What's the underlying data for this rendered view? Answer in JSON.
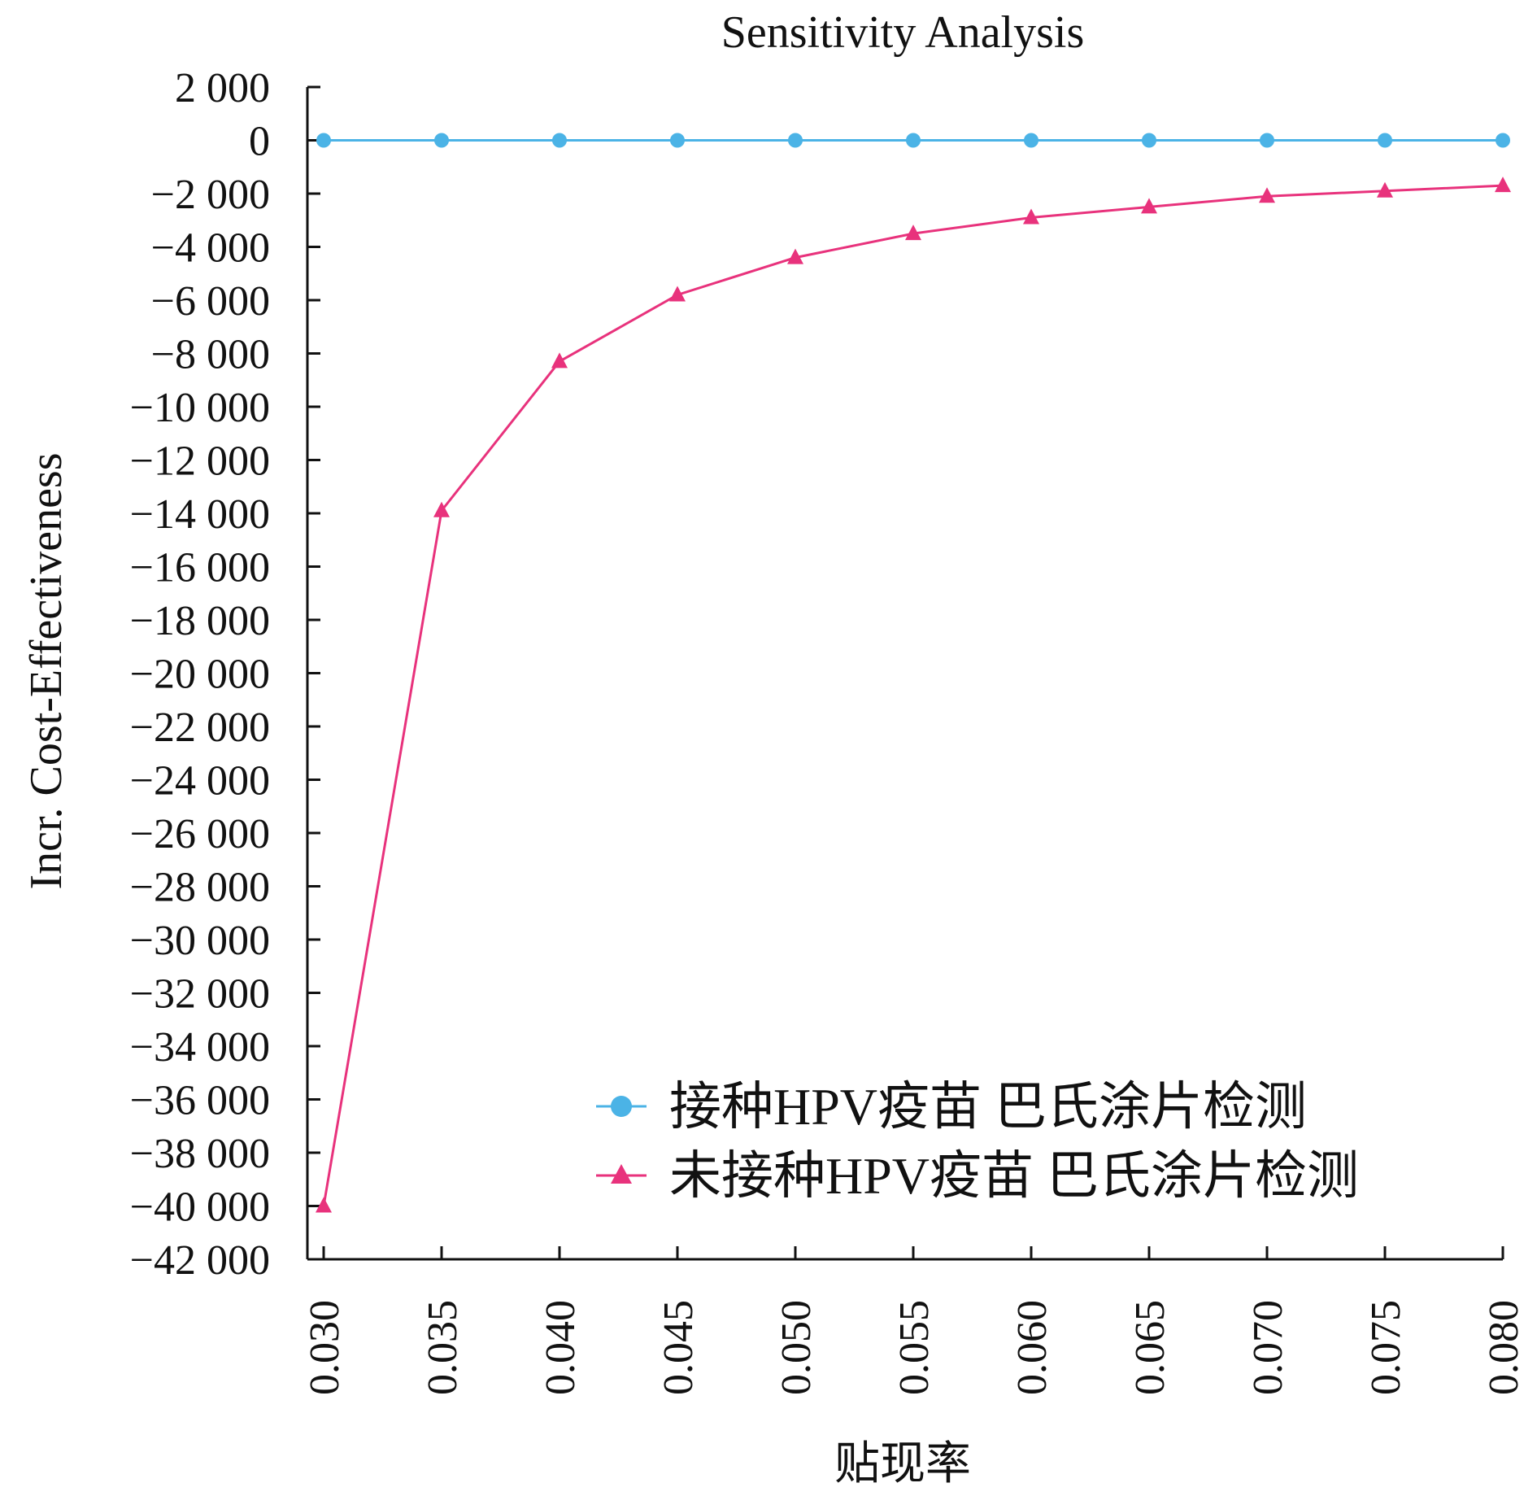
{
  "chart_data": {
    "type": "line",
    "title": "Sensitivity Analysis",
    "xlabel": "贴现率",
    "ylabel": "Incr. Cost-Effectiveness",
    "x": [
      0.03,
      0.035,
      0.04,
      0.045,
      0.05,
      0.055,
      0.06,
      0.065,
      0.07,
      0.075,
      0.08
    ],
    "x_tick_labels": [
      "0.030",
      "0.035",
      "0.040",
      "0.045",
      "0.050",
      "0.055",
      "0.060",
      "0.065",
      "0.070",
      "0.075",
      "0.080"
    ],
    "ylim": [
      -42000,
      2000
    ],
    "y_ticks": [
      2000,
      0,
      -2000,
      -4000,
      -6000,
      -8000,
      -10000,
      -12000,
      -14000,
      -16000,
      -18000,
      -20000,
      -22000,
      -24000,
      -26000,
      -28000,
      -30000,
      -32000,
      -34000,
      -36000,
      -38000,
      -40000,
      -42000
    ],
    "y_tick_labels": [
      "2 000",
      "0",
      "−2 000",
      "−4 000",
      "−6 000",
      "−8 000",
      "−10 000",
      "−12 000",
      "−14 000",
      "−16 000",
      "−18 000",
      "−20 000",
      "−22 000",
      "−24 000",
      "−26 000",
      "−28 000",
      "−30 000",
      "−32 000",
      "−34 000",
      "−36 000",
      "−38 000",
      "−40 000",
      "−42 000"
    ],
    "grid": false,
    "legend_position": "bottom-right",
    "series": [
      {
        "name": "接种HPV疫苗 巴氏涂片检测",
        "color": "#4bb3e6",
        "marker": "circle",
        "values": [
          0,
          0,
          0,
          0,
          0,
          0,
          0,
          0,
          0,
          0,
          0
        ]
      },
      {
        "name": "未接种HPV疫苗 巴氏涂片检测",
        "color": "#e8327c",
        "marker": "triangle",
        "values": [
          -40000,
          -13900,
          -8300,
          -5800,
          -4400,
          -3500,
          -2900,
          -2500,
          -2100,
          -1900,
          -1700
        ]
      }
    ]
  }
}
